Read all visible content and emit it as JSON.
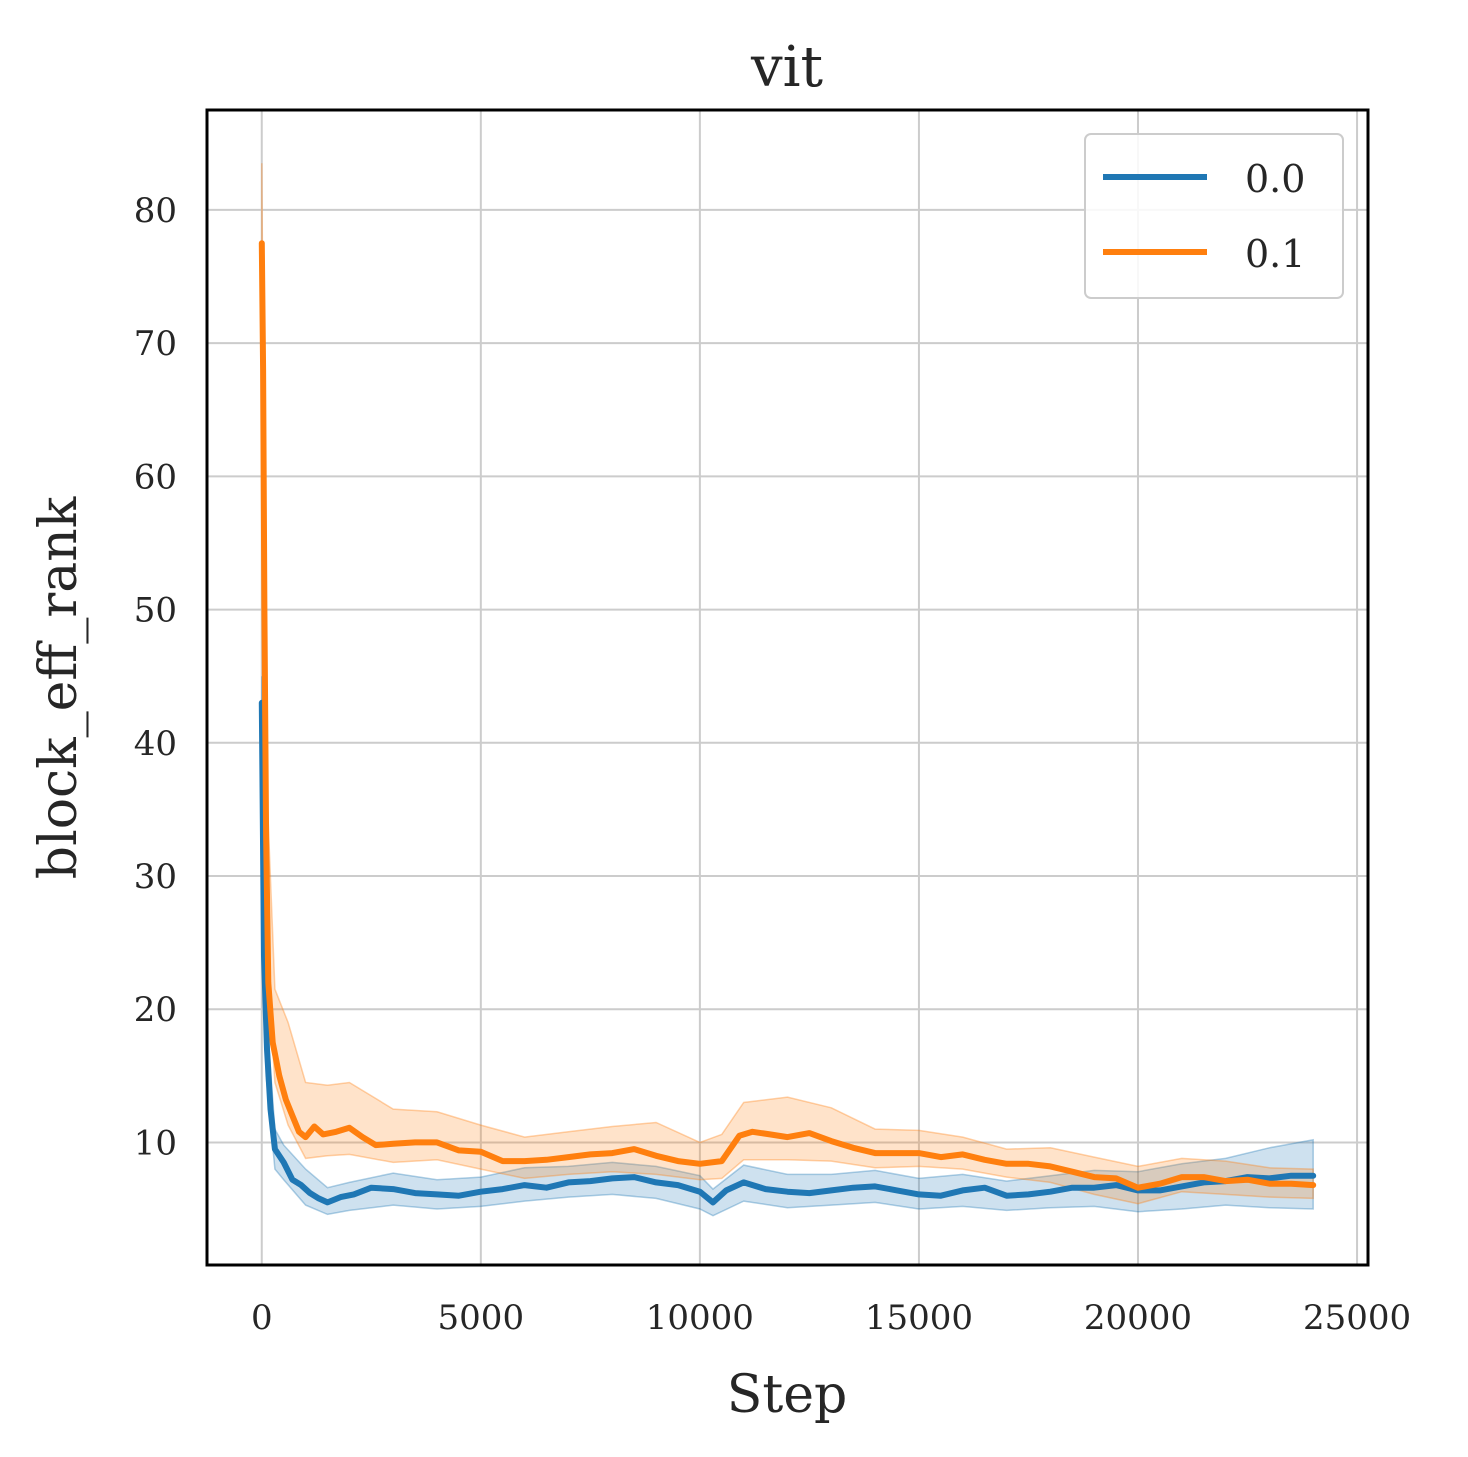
{
  "chart_data": {
    "type": "line",
    "title": "vit",
    "xlabel": "Step",
    "ylabel": "block_eff_rank",
    "xlim": [
      -1250,
      25250
    ],
    "ylim": [
      0.8,
      87.5
    ],
    "xticks": [
      0,
      5000,
      10000,
      15000,
      20000,
      25000
    ],
    "yticks": [
      10,
      20,
      30,
      40,
      50,
      60,
      70,
      80
    ],
    "grid": true,
    "legend_position": "top-right",
    "series": [
      {
        "name": "0.0",
        "color": "#1f77b4",
        "points": [
          [
            0,
            43
          ],
          [
            50,
            24
          ],
          [
            120,
            17
          ],
          [
            200,
            12.5
          ],
          [
            300,
            9.5
          ],
          [
            500,
            8.5
          ],
          [
            700,
            7.2
          ],
          [
            900,
            6.8
          ],
          [
            1100,
            6.2
          ],
          [
            1300,
            5.8
          ],
          [
            1500,
            5.5
          ],
          [
            1800,
            5.9
          ],
          [
            2100,
            6.1
          ],
          [
            2500,
            6.6
          ],
          [
            3000,
            6.5
          ],
          [
            3500,
            6.2
          ],
          [
            4000,
            6.1
          ],
          [
            4500,
            6.0
          ],
          [
            5000,
            6.3
          ],
          [
            5500,
            6.5
          ],
          [
            6000,
            6.8
          ],
          [
            6500,
            6.6
          ],
          [
            7000,
            7.0
          ],
          [
            7500,
            7.1
          ],
          [
            8000,
            7.3
          ],
          [
            8500,
            7.4
          ],
          [
            9000,
            7.0
          ],
          [
            9500,
            6.8
          ],
          [
            10000,
            6.3
          ],
          [
            10300,
            5.5
          ],
          [
            10600,
            6.4
          ],
          [
            11000,
            7.0
          ],
          [
            11500,
            6.5
          ],
          [
            12000,
            6.3
          ],
          [
            12500,
            6.2
          ],
          [
            13000,
            6.4
          ],
          [
            13500,
            6.6
          ],
          [
            14000,
            6.7
          ],
          [
            14500,
            6.4
          ],
          [
            15000,
            6.1
          ],
          [
            15500,
            6.0
          ],
          [
            16000,
            6.4
          ],
          [
            16500,
            6.6
          ],
          [
            17000,
            6.0
          ],
          [
            17500,
            6.1
          ],
          [
            18000,
            6.3
          ],
          [
            18500,
            6.6
          ],
          [
            19000,
            6.6
          ],
          [
            19500,
            6.8
          ],
          [
            20000,
            6.4
          ],
          [
            20500,
            6.4
          ],
          [
            21000,
            6.7
          ],
          [
            21500,
            7.0
          ],
          [
            22000,
            7.1
          ],
          [
            22500,
            7.4
          ],
          [
            23000,
            7.3
          ],
          [
            23500,
            7.5
          ],
          [
            24000,
            7.5
          ]
        ],
        "lower": [
          [
            0,
            38
          ],
          [
            100,
            15
          ],
          [
            300,
            8.0
          ],
          [
            500,
            7.2
          ],
          [
            1000,
            5.3
          ],
          [
            1500,
            4.6
          ],
          [
            2000,
            4.9
          ],
          [
            3000,
            5.3
          ],
          [
            4000,
            5.0
          ],
          [
            5000,
            5.2
          ],
          [
            6000,
            5.6
          ],
          [
            7000,
            5.9
          ],
          [
            8000,
            6.1
          ],
          [
            9000,
            5.8
          ],
          [
            10000,
            5.0
          ],
          [
            10300,
            4.5
          ],
          [
            11000,
            5.6
          ],
          [
            12000,
            5.1
          ],
          [
            13000,
            5.3
          ],
          [
            14000,
            5.5
          ],
          [
            15000,
            5.0
          ],
          [
            16000,
            5.2
          ],
          [
            17000,
            4.9
          ],
          [
            18000,
            5.1
          ],
          [
            19000,
            5.2
          ],
          [
            20000,
            4.8
          ],
          [
            21000,
            5.0
          ],
          [
            22000,
            5.3
          ],
          [
            23000,
            5.1
          ],
          [
            24000,
            5.0
          ]
        ],
        "upper": [
          [
            0,
            45
          ],
          [
            100,
            20
          ],
          [
            300,
            11.0
          ],
          [
            500,
            9.8
          ],
          [
            1000,
            8.0
          ],
          [
            1500,
            6.6
          ],
          [
            2000,
            7.0
          ],
          [
            3000,
            7.7
          ],
          [
            4000,
            7.2
          ],
          [
            5000,
            7.4
          ],
          [
            6000,
            8.1
          ],
          [
            7000,
            8.2
          ],
          [
            8000,
            8.5
          ],
          [
            9000,
            8.2
          ],
          [
            10000,
            7.5
          ],
          [
            10300,
            6.5
          ],
          [
            11000,
            8.3
          ],
          [
            12000,
            7.6
          ],
          [
            13000,
            7.6
          ],
          [
            14000,
            7.9
          ],
          [
            15000,
            7.3
          ],
          [
            16000,
            7.6
          ],
          [
            17000,
            7.1
          ],
          [
            18000,
            7.5
          ],
          [
            19000,
            7.9
          ],
          [
            20000,
            7.8
          ],
          [
            21000,
            8.4
          ],
          [
            22000,
            8.8
          ],
          [
            23000,
            9.6
          ],
          [
            24000,
            10.2
          ]
        ]
      },
      {
        "name": "0.1",
        "color": "#ff7f0e",
        "points": [
          [
            0,
            77.5
          ],
          [
            30,
            68
          ],
          [
            60,
            50
          ],
          [
            100,
            33
          ],
          [
            150,
            22
          ],
          [
            250,
            17.5
          ],
          [
            400,
            15
          ],
          [
            550,
            13.2
          ],
          [
            700,
            12
          ],
          [
            850,
            10.8
          ],
          [
            1000,
            10.4
          ],
          [
            1200,
            11.2
          ],
          [
            1400,
            10.6
          ],
          [
            1700,
            10.8
          ],
          [
            2000,
            11.1
          ],
          [
            2300,
            10.4
          ],
          [
            2600,
            9.8
          ],
          [
            3000,
            9.9
          ],
          [
            3500,
            10.0
          ],
          [
            4000,
            10.0
          ],
          [
            4500,
            9.4
          ],
          [
            5000,
            9.3
          ],
          [
            5500,
            8.6
          ],
          [
            6000,
            8.6
          ],
          [
            6500,
            8.7
          ],
          [
            7000,
            8.9
          ],
          [
            7500,
            9.1
          ],
          [
            8000,
            9.2
          ],
          [
            8500,
            9.5
          ],
          [
            9000,
            9.0
          ],
          [
            9500,
            8.6
          ],
          [
            10000,
            8.4
          ],
          [
            10500,
            8.6
          ],
          [
            10900,
            10.5
          ],
          [
            11200,
            10.8
          ],
          [
            11600,
            10.6
          ],
          [
            12000,
            10.4
          ],
          [
            12500,
            10.7
          ],
          [
            13000,
            10.1
          ],
          [
            13500,
            9.6
          ],
          [
            14000,
            9.2
          ],
          [
            14500,
            9.2
          ],
          [
            15000,
            9.2
          ],
          [
            15500,
            8.9
          ],
          [
            16000,
            9.1
          ],
          [
            16500,
            8.7
          ],
          [
            17000,
            8.4
          ],
          [
            17500,
            8.4
          ],
          [
            18000,
            8.2
          ],
          [
            18500,
            7.8
          ],
          [
            19000,
            7.4
          ],
          [
            19500,
            7.3
          ],
          [
            20000,
            6.6
          ],
          [
            20500,
            6.9
          ],
          [
            21000,
            7.4
          ],
          [
            21500,
            7.4
          ],
          [
            22000,
            7.1
          ],
          [
            22500,
            7.2
          ],
          [
            23000,
            6.9
          ],
          [
            23500,
            6.9
          ],
          [
            24000,
            6.8
          ]
        ],
        "lower": [
          [
            0,
            70
          ],
          [
            100,
            25
          ],
          [
            300,
            14.5
          ],
          [
            600,
            11.3
          ],
          [
            1000,
            8.8
          ],
          [
            1500,
            9.0
          ],
          [
            2000,
            9.1
          ],
          [
            3000,
            8.5
          ],
          [
            4000,
            8.7
          ],
          [
            5000,
            8.0
          ],
          [
            6000,
            7.3
          ],
          [
            7000,
            7.6
          ],
          [
            8000,
            7.8
          ],
          [
            9000,
            7.6
          ],
          [
            10000,
            7.2
          ],
          [
            10500,
            7.3
          ],
          [
            11000,
            8.7
          ],
          [
            12000,
            8.7
          ],
          [
            13000,
            8.6
          ],
          [
            14000,
            8.1
          ],
          [
            15000,
            8.2
          ],
          [
            16000,
            8.0
          ],
          [
            17000,
            7.4
          ],
          [
            18000,
            7.0
          ],
          [
            19000,
            6.1
          ],
          [
            20000,
            5.4
          ],
          [
            21000,
            6.3
          ],
          [
            22000,
            6.1
          ],
          [
            23000,
            5.9
          ],
          [
            24000,
            5.8
          ]
        ],
        "upper": [
          [
            0,
            83.5
          ],
          [
            100,
            38
          ],
          [
            300,
            21.5
          ],
          [
            600,
            19
          ],
          [
            1000,
            14.5
          ],
          [
            1500,
            14.3
          ],
          [
            2000,
            14.5
          ],
          [
            3000,
            12.5
          ],
          [
            4000,
            12.3
          ],
          [
            5000,
            11.3
          ],
          [
            6000,
            10.4
          ],
          [
            7000,
            10.8
          ],
          [
            8000,
            11.2
          ],
          [
            9000,
            11.5
          ],
          [
            10000,
            10.0
          ],
          [
            10500,
            10.6
          ],
          [
            11000,
            13.0
          ],
          [
            12000,
            13.4
          ],
          [
            13000,
            12.6
          ],
          [
            14000,
            11.0
          ],
          [
            15000,
            10.9
          ],
          [
            16000,
            10.4
          ],
          [
            17000,
            9.5
          ],
          [
            18000,
            9.6
          ],
          [
            19000,
            8.9
          ],
          [
            20000,
            8.2
          ],
          [
            21000,
            8.8
          ],
          [
            22000,
            8.6
          ],
          [
            23000,
            8.1
          ],
          [
            24000,
            8.0
          ]
        ]
      }
    ]
  }
}
